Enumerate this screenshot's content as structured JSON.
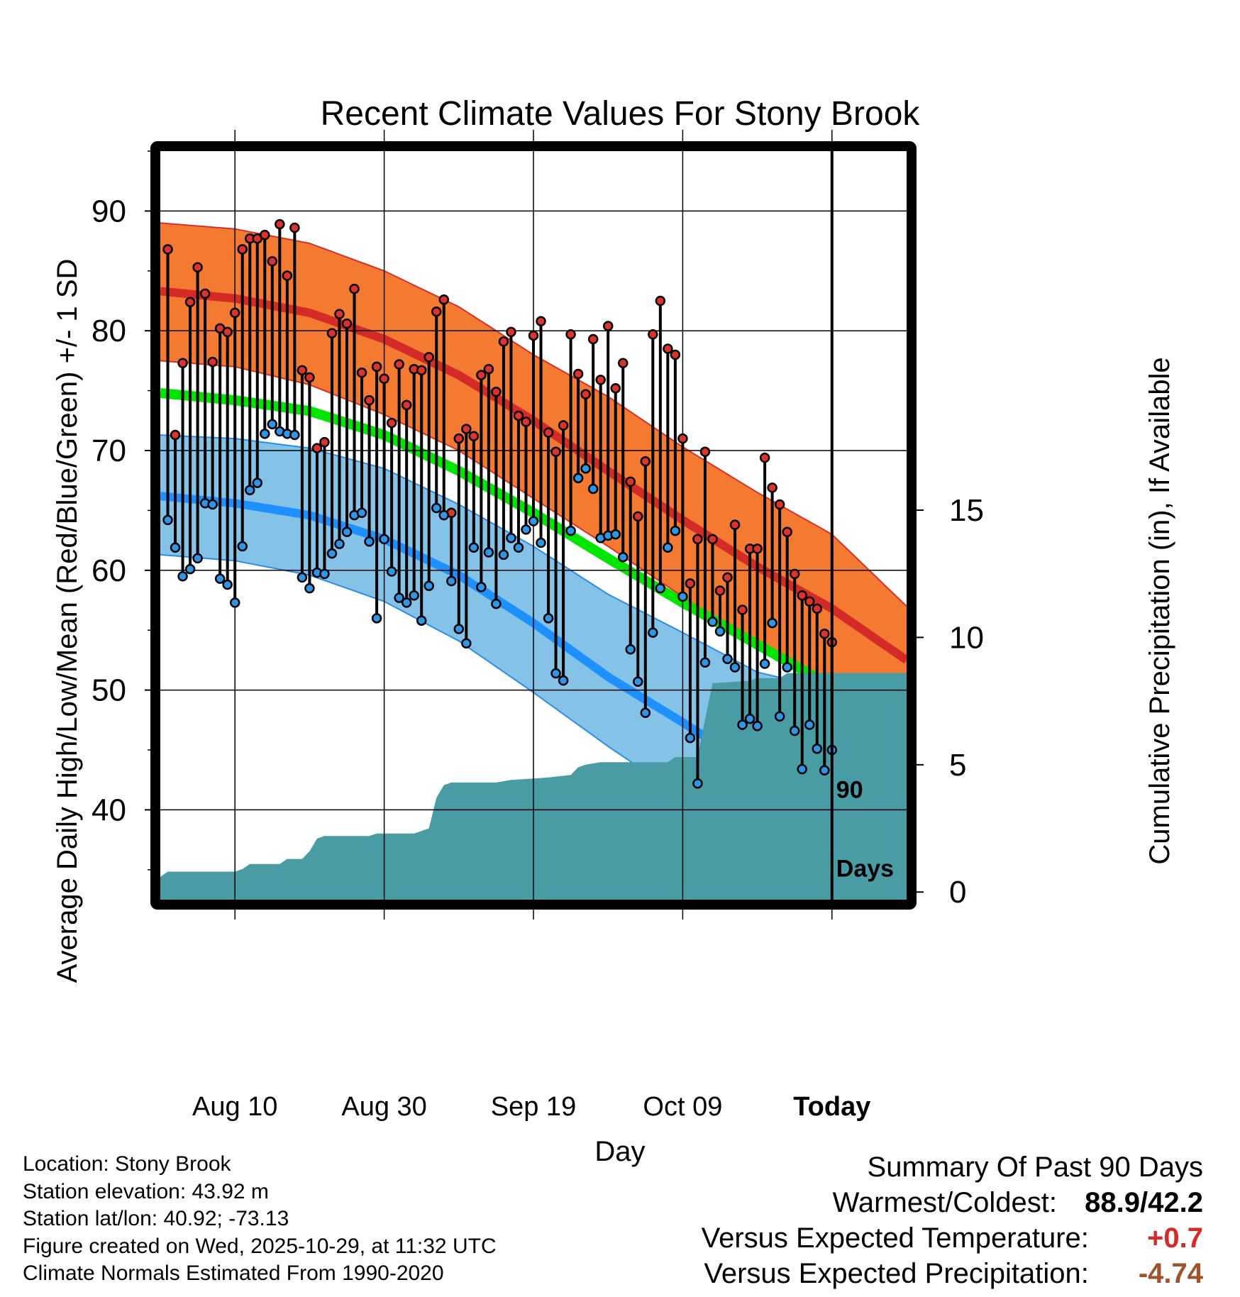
{
  "chart_data": {
    "type": "line",
    "title": "Recent Climate Values For Stony Brook",
    "xlabel": "Day",
    "ylabel": "Average Daily High/Low/Mean (Red/Blue/Green) +/- 1 SD",
    "y2label": "Cumulative Precipitation (in), If Available",
    "xlim": [
      0,
      100
    ],
    "ylim": [
      32.5,
      95
    ],
    "y2lim": [
      -0.3,
      29.1
    ],
    "yticks": [
      40,
      50,
      60,
      70,
      80,
      90
    ],
    "yticklabels": [
      "40",
      "50",
      "60",
      "70",
      "80",
      "90"
    ],
    "y2ticks": [
      0,
      5,
      10,
      15
    ],
    "y2ticklabels": [
      "0",
      "5",
      "10",
      "15"
    ],
    "xticks": [
      10,
      30,
      50,
      70,
      90
    ],
    "xticklabels": [
      "Aug 10",
      "Aug 30",
      "Sep 19",
      "Oct 09",
      "Today"
    ],
    "today_day": 90,
    "today_label": [
      "90",
      "Days"
    ],
    "normal_high_mean": [
      [
        0,
        83.3
      ],
      [
        10,
        82.7
      ],
      [
        20,
        81.5
      ],
      [
        30,
        79.3
      ],
      [
        40,
        76.3
      ],
      [
        50,
        72.5
      ],
      [
        60,
        68.3
      ],
      [
        70,
        64.2
      ],
      [
        80,
        60.3
      ],
      [
        90,
        56.8
      ],
      [
        100,
        52.5
      ]
    ],
    "normal_high_upper": [
      [
        0,
        89.0
      ],
      [
        10,
        88.5
      ],
      [
        20,
        87.3
      ],
      [
        30,
        85.0
      ],
      [
        40,
        82.0
      ],
      [
        50,
        78.0
      ],
      [
        60,
        74.5
      ],
      [
        70,
        70.3
      ],
      [
        80,
        66.5
      ],
      [
        90,
        63.0
      ],
      [
        100,
        57.0
      ]
    ],
    "normal_high_lower": [
      [
        0,
        77.5
      ],
      [
        10,
        77.0
      ],
      [
        20,
        75.5
      ],
      [
        30,
        73.0
      ],
      [
        40,
        70.0
      ],
      [
        50,
        66.0
      ],
      [
        60,
        62.0
      ],
      [
        70,
        57.8
      ],
      [
        80,
        53.5
      ],
      [
        90,
        50.5
      ],
      [
        100,
        48.3
      ]
    ],
    "normal_mean": [
      [
        0,
        74.8
      ],
      [
        10,
        74.2
      ],
      [
        20,
        73.3
      ],
      [
        30,
        71.3
      ],
      [
        40,
        68.3
      ],
      [
        50,
        64.8
      ],
      [
        60,
        61.0
      ],
      [
        70,
        57.3
      ],
      [
        80,
        53.8
      ],
      [
        90,
        50.3
      ],
      [
        100,
        47.8
      ]
    ],
    "normal_low_mean": [
      [
        0,
        66.2
      ],
      [
        10,
        65.6
      ],
      [
        20,
        64.6
      ],
      [
        30,
        62.6
      ],
      [
        40,
        59.6
      ],
      [
        50,
        55.6
      ],
      [
        60,
        51.1
      ],
      [
        70,
        47.3
      ],
      [
        80,
        43.3
      ],
      [
        90,
        39.3
      ],
      [
        100,
        35.5
      ]
    ],
    "normal_low_upper": [
      [
        0,
        71.3
      ],
      [
        10,
        71.0
      ],
      [
        20,
        70.2
      ],
      [
        30,
        68.5
      ],
      [
        40,
        65.5
      ],
      [
        50,
        62.0
      ],
      [
        60,
        58.0
      ],
      [
        70,
        54.8
      ],
      [
        80,
        51.5
      ],
      [
        90,
        50.0
      ],
      [
        100,
        47.3
      ]
    ],
    "normal_low_lower": [
      [
        0,
        61.3
      ],
      [
        10,
        60.8
      ],
      [
        20,
        59.6
      ],
      [
        30,
        57.4
      ],
      [
        40,
        54.1
      ],
      [
        50,
        49.8
      ],
      [
        60,
        45.3
      ],
      [
        70,
        41.1
      ],
      [
        80,
        37.0
      ],
      [
        90,
        34.0
      ],
      [
        100,
        32.5
      ]
    ],
    "daily_high": [
      86.8,
      71.3,
      77.3,
      82.4,
      85.3,
      83.1,
      77.4,
      80.2,
      79.9,
      81.5,
      86.8,
      87.7,
      87.7,
      88.0,
      85.8,
      88.9,
      84.6,
      88.6,
      76.7,
      76.1,
      70.2,
      70.7,
      79.8,
      81.4,
      80.6,
      83.5,
      76.5,
      74.2,
      77.0,
      76.0,
      72.3,
      77.2,
      73.8,
      76.8,
      76.7,
      77.8,
      81.6,
      82.6,
      64.8,
      71.0,
      71.8,
      71.2,
      76.3,
      76.8,
      74.9,
      79.1,
      79.9,
      72.9,
      72.4,
      79.6,
      80.8,
      71.5,
      69.9,
      72.1,
      79.7,
      76.4,
      74.7,
      79.3,
      75.9,
      80.4,
      75.2,
      77.3,
      67.4,
      64.5,
      69.1,
      79.7,
      82.5,
      78.5,
      78.0,
      71.0,
      58.9,
      62.6,
      69.9,
      62.6,
      58.3,
      59.4,
      63.8,
      56.7,
      61.8,
      61.8,
      69.4,
      66.9,
      65.5,
      63.2,
      59.7,
      57.9,
      57.4,
      56.8,
      54.7,
      54.0
    ],
    "daily_low": [
      64.2,
      61.9,
      59.5,
      60.1,
      61.0,
      65.6,
      65.5,
      59.3,
      58.8,
      57.3,
      62.0,
      66.7,
      67.3,
      71.4,
      72.2,
      71.6,
      71.4,
      71.3,
      59.4,
      58.5,
      59.8,
      59.7,
      61.4,
      62.2,
      63.2,
      64.6,
      64.8,
      62.4,
      56.0,
      62.6,
      59.9,
      57.7,
      57.3,
      57.9,
      55.8,
      58.7,
      65.2,
      64.6,
      59.1,
      55.1,
      53.9,
      61.9,
      58.6,
      61.5,
      57.2,
      61.3,
      62.7,
      61.9,
      63.4,
      64.1,
      62.3,
      56.0,
      51.4,
      50.8,
      63.3,
      67.7,
      68.5,
      66.8,
      62.7,
      62.9,
      63.0,
      61.1,
      53.4,
      50.7,
      48.1,
      54.8,
      58.5,
      61.9,
      63.3,
      57.8,
      46.0,
      42.2,
      52.3,
      55.7,
      54.9,
      52.6,
      51.9,
      47.1,
      47.6,
      47.0,
      52.2,
      55.6,
      47.8,
      51.9,
      46.6,
      43.4,
      47.1,
      45.1,
      43.3,
      45.0
    ],
    "precip_cumulative": [
      [
        0,
        0.6
      ],
      [
        1,
        0.8
      ],
      [
        10,
        0.8
      ],
      [
        11,
        0.9
      ],
      [
        12,
        1.1
      ],
      [
        16,
        1.1
      ],
      [
        17,
        1.3
      ],
      [
        19,
        1.3
      ],
      [
        20,
        1.6
      ],
      [
        21,
        2.1
      ],
      [
        22,
        2.2
      ],
      [
        28,
        2.2
      ],
      [
        29,
        2.3
      ],
      [
        34,
        2.3
      ],
      [
        35,
        2.4
      ],
      [
        36,
        2.5
      ],
      [
        37,
        3.7
      ],
      [
        38,
        4.2
      ],
      [
        39,
        4.3
      ],
      [
        45,
        4.3
      ],
      [
        47,
        4.4
      ],
      [
        52,
        4.5
      ],
      [
        55,
        4.6
      ],
      [
        56,
        4.9
      ],
      [
        57,
        5.0
      ],
      [
        59,
        5.1
      ],
      [
        68,
        5.1
      ],
      [
        69,
        5.3
      ],
      [
        72,
        5.3
      ],
      [
        73,
        6.8
      ],
      [
        74,
        8.2
      ],
      [
        79,
        8.3
      ],
      [
        80,
        8.4
      ],
      [
        83,
        8.4
      ],
      [
        84,
        8.6
      ],
      [
        86,
        8.6
      ],
      [
        100,
        8.6
      ]
    ]
  },
  "location": "Location: Stony Brook",
  "elevation": "Station elevation: 43.92 m",
  "latlon": "Station lat/lon: 40.92; -73.13",
  "created": "Figure created on Wed, 2025-10-29, at 11:32 UTC",
  "normals": "Climate Normals Estimated From 1990-2020",
  "summary": {
    "title": "Summary Of Past 90 Days",
    "warmest_label": "Warmest/Coldest:",
    "warmest": "88.9",
    "slash": "/",
    "coldest": "42.2",
    "temp_label": "Versus Expected Temperature:",
    "temp_value": "+0.7",
    "precip_label": "Versus Expected Precipitation:",
    "precip_value": "-4.74"
  },
  "colors": {
    "high_band": "#f37a30",
    "high_line": "#d42a28",
    "high_edge": "#d8312c",
    "mean_line": "#00e600",
    "low_band": "#84c2e8",
    "low_line": "#1e90ff",
    "low_edge": "#2b8ee6",
    "precip": "#4a9ca4",
    "high_marker": "#e0322c",
    "low_marker": "#2e96e8",
    "temp_pos": "#d42a28",
    "precip_neg": "#a0522d"
  }
}
